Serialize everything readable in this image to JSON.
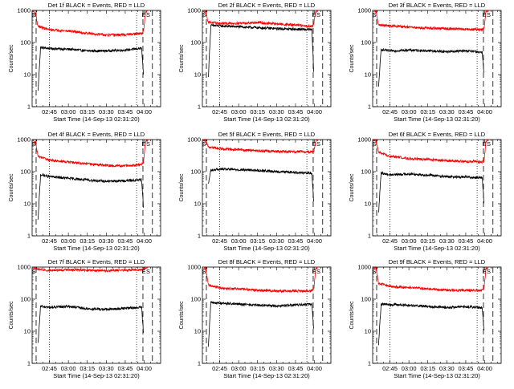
{
  "figure": {
    "colors": {
      "events": "#000000",
      "lld": "#ff0000",
      "axes": "#000000"
    }
  },
  "chart_data": [
    {
      "type": "line",
      "title": "Det 1f BLACK = Events, RED = LLD",
      "xlabel": "Start Time (14-Sep-13 02:31:20)",
      "ylabel": "Counts/sec",
      "ylim": [
        1,
        1000
      ],
      "ylog": true,
      "xlim": [
        "02:31:20",
        "04:13:00"
      ],
      "x_ticks": [
        "02:45",
        "03:00",
        "03:15",
        "03:30",
        "03:45",
        "04:00"
      ],
      "y_ticks": [
        "1",
        "10",
        "100",
        "1000"
      ],
      "markers": [
        {
          "label": "S",
          "time": "02:32:00"
        },
        {
          "label": "E",
          "time": "03:59:00"
        },
        {
          "label": "S",
          "time": "04:02:30"
        }
      ],
      "dashed_lines": [
        "02:34:30",
        "03:59:00",
        "04:06:30"
      ],
      "dotted_lines": [
        "02:45:00",
        "03:54:00"
      ],
      "series": [
        {
          "name": "Events",
          "color": "#000000",
          "x": [
            "02:36:00",
            "02:38:00",
            "02:45:00",
            "03:00:00",
            "03:15:00",
            "03:30:00",
            "03:45:00",
            "03:58:00",
            "03:59:30"
          ],
          "values": [
            3,
            70,
            65,
            62,
            55,
            55,
            58,
            66,
            8
          ]
        },
        {
          "name": "LLD",
          "color": "#ff0000",
          "x": [
            "02:32:00",
            "02:34:00",
            "02:36:00",
            "02:45:00",
            "03:00:00",
            "03:15:00",
            "03:30:00",
            "03:45:00",
            "03:58:00",
            "03:59:30",
            "04:01:00",
            "04:03:00"
          ],
          "values": [
            1000,
            800,
            320,
            250,
            230,
            195,
            170,
            175,
            190,
            230,
            850,
            1000
          ]
        }
      ]
    },
    {
      "type": "line",
      "title": "Det 2f BLACK = Events, RED = LLD",
      "xlabel": "Start Time (14-Sep-13 02:31:20)",
      "ylabel": "Counts/sec",
      "ylim": [
        1,
        1000
      ],
      "ylog": true,
      "xlim": [
        "02:31:20",
        "04:13:00"
      ],
      "x_ticks": [
        "02:45",
        "03:00",
        "03:15",
        "03:30",
        "03:45",
        "04:00"
      ],
      "y_ticks": [
        "1",
        "10",
        "100",
        "1000"
      ],
      "markers": [
        {
          "label": "S",
          "time": "02:32:00"
        },
        {
          "label": "E",
          "time": "03:59:00"
        },
        {
          "label": "S",
          "time": "04:02:30"
        }
      ],
      "dashed_lines": [
        "02:34:30",
        "03:59:00",
        "04:06:30"
      ],
      "dotted_lines": [
        "02:45:00",
        "03:54:00"
      ],
      "series": [
        {
          "name": "Events",
          "color": "#000000",
          "x": [
            "02:36:00",
            "02:38:00",
            "02:45:00",
            "03:00:00",
            "03:15:00",
            "03:30:00",
            "03:45:00",
            "03:58:00",
            "03:59:30"
          ],
          "values": [
            8,
            340,
            330,
            310,
            290,
            270,
            260,
            250,
            10
          ]
        },
        {
          "name": "LLD",
          "color": "#ff0000",
          "x": [
            "02:32:00",
            "02:34:00",
            "02:36:00",
            "02:45:00",
            "03:00:00",
            "03:15:00",
            "03:30:00",
            "03:45:00",
            "03:58:00",
            "03:59:30",
            "04:01:00",
            "04:03:00"
          ],
          "values": [
            1000,
            900,
            430,
            390,
            400,
            420,
            380,
            350,
            320,
            400,
            900,
            1000
          ]
        }
      ]
    },
    {
      "type": "line",
      "title": "Det 3f BLACK = Events, RED = LLD",
      "xlabel": "Start Time (14-Sep-13 02:31:20)",
      "ylabel": "Counts/sec",
      "ylim": [
        1,
        1000
      ],
      "ylog": true,
      "xlim": [
        "02:31:20",
        "04:13:00"
      ],
      "x_ticks": [
        "02:45",
        "03:00",
        "03:15",
        "03:30",
        "03:45",
        "04:00"
      ],
      "y_ticks": [
        "1",
        "10",
        "100",
        "1000"
      ],
      "markers": [
        {
          "label": "S",
          "time": "02:32:00"
        },
        {
          "label": "E",
          "time": "03:59:00"
        },
        {
          "label": "S",
          "time": "04:02:30"
        }
      ],
      "dashed_lines": [
        "02:34:30",
        "03:59:00",
        "04:06:30"
      ],
      "dotted_lines": [
        "02:45:00",
        "03:54:00"
      ],
      "series": [
        {
          "name": "Events",
          "color": "#000000",
          "x": [
            "02:36:00",
            "02:38:00",
            "02:45:00",
            "03:00:00",
            "03:15:00",
            "03:30:00",
            "03:45:00",
            "03:58:00",
            "03:59:30"
          ],
          "values": [
            4,
            60,
            55,
            58,
            55,
            52,
            55,
            50,
            10
          ]
        },
        {
          "name": "LLD",
          "color": "#ff0000",
          "x": [
            "02:32:00",
            "02:34:00",
            "02:36:00",
            "02:45:00",
            "03:00:00",
            "03:15:00",
            "03:30:00",
            "03:45:00",
            "03:58:00",
            "03:59:30",
            "04:01:00",
            "04:03:00"
          ],
          "values": [
            1000,
            900,
            350,
            330,
            300,
            280,
            270,
            260,
            250,
            280,
            900,
            1000
          ]
        }
      ]
    },
    {
      "type": "line",
      "title": "Det 4f BLACK = Events, RED = LLD",
      "xlabel": "Start Time (14-Sep-13 02:31:20)",
      "ylabel": "Counts/sec",
      "ylim": [
        1,
        1000
      ],
      "ylog": true,
      "xlim": [
        "02:31:20",
        "04:13:00"
      ],
      "x_ticks": [
        "02:45",
        "03:00",
        "03:15",
        "03:30",
        "03:45",
        "04:00"
      ],
      "y_ticks": [
        "1",
        "10",
        "100",
        "1000"
      ],
      "markers": [
        {
          "label": "S",
          "time": "02:32:00"
        },
        {
          "label": "E",
          "time": "03:59:00"
        },
        {
          "label": "S",
          "time": "04:02:30"
        }
      ],
      "dashed_lines": [
        "02:34:30",
        "03:59:00",
        "04:06:30"
      ],
      "dotted_lines": [
        "02:45:00",
        "03:54:00"
      ],
      "series": [
        {
          "name": "Events",
          "color": "#000000",
          "x": [
            "02:36:00",
            "02:38:00",
            "02:45:00",
            "03:00:00",
            "03:15:00",
            "03:30:00",
            "03:45:00",
            "03:58:00",
            "03:59:30"
          ],
          "values": [
            3,
            80,
            70,
            62,
            55,
            50,
            52,
            55,
            7
          ]
        },
        {
          "name": "LLD",
          "color": "#ff0000",
          "x": [
            "02:32:00",
            "02:34:00",
            "02:36:00",
            "02:45:00",
            "03:00:00",
            "03:15:00",
            "03:30:00",
            "03:45:00",
            "03:58:00",
            "03:59:30",
            "04:01:00",
            "04:03:00"
          ],
          "values": [
            1000,
            800,
            300,
            230,
            200,
            175,
            155,
            150,
            165,
            200,
            850,
            1000
          ]
        }
      ]
    },
    {
      "type": "line",
      "title": "Det 5f BLACK = Events, RED = LLD",
      "xlabel": "Start Time (14-Sep-13 02:31:20)",
      "ylabel": "Counts/sec",
      "ylim": [
        1,
        1000
      ],
      "ylog": true,
      "xlim": [
        "02:31:20",
        "04:13:00"
      ],
      "x_ticks": [
        "02:45",
        "03:00",
        "03:15",
        "03:30",
        "03:45",
        "04:00"
      ],
      "y_ticks": [
        "1",
        "10",
        "100",
        "1000"
      ],
      "markers": [
        {
          "label": "S",
          "time": "02:32:00"
        },
        {
          "label": "E",
          "time": "03:59:00"
        },
        {
          "label": "S",
          "time": "04:02:30"
        }
      ],
      "dashed_lines": [
        "02:34:30",
        "03:59:00",
        "04:06:30"
      ],
      "dotted_lines": [
        "02:45:00",
        "03:54:00"
      ],
      "series": [
        {
          "name": "Events",
          "color": "#000000",
          "x": [
            "02:36:00",
            "02:38:00",
            "02:45:00",
            "03:00:00",
            "03:15:00",
            "03:30:00",
            "03:45:00",
            "03:58:00",
            "03:59:30"
          ],
          "values": [
            40,
            110,
            120,
            115,
            110,
            100,
            95,
            90,
            10
          ]
        },
        {
          "name": "LLD",
          "color": "#ff0000",
          "x": [
            "02:32:00",
            "02:34:00",
            "02:36:00",
            "02:45:00",
            "03:00:00",
            "03:15:00",
            "03:30:00",
            "03:45:00",
            "03:58:00",
            "03:59:30",
            "04:01:00",
            "04:03:00"
          ],
          "values": [
            1000,
            900,
            580,
            520,
            480,
            450,
            430,
            420,
            420,
            430,
            900,
            1000
          ]
        }
      ]
    },
    {
      "type": "line",
      "title": "Det 6f BLACK = Events, RED = LLD",
      "xlabel": "Start Time (14-Sep-13 02:31:20)",
      "ylabel": "Counts/sec",
      "ylim": [
        1,
        1000
      ],
      "ylog": true,
      "xlim": [
        "02:31:20",
        "04:13:00"
      ],
      "x_ticks": [
        "02:45",
        "03:00",
        "03:15",
        "03:30",
        "03:45",
        "04:00"
      ],
      "y_ticks": [
        "1",
        "10",
        "100",
        "1000"
      ],
      "markers": [
        {
          "label": "S",
          "time": "02:32:00"
        },
        {
          "label": "E",
          "time": "03:59:00"
        },
        {
          "label": "S",
          "time": "04:02:30"
        }
      ],
      "dashed_lines": [
        "02:34:30",
        "03:59:00",
        "04:06:30"
      ],
      "dotted_lines": [
        "02:45:00",
        "03:54:00"
      ],
      "series": [
        {
          "name": "Events",
          "color": "#000000",
          "x": [
            "02:36:00",
            "02:38:00",
            "02:45:00",
            "03:00:00",
            "03:15:00",
            "03:30:00",
            "03:45:00",
            "03:58:00",
            "03:59:30"
          ],
          "values": [
            5,
            90,
            80,
            85,
            78,
            70,
            68,
            65,
            10
          ]
        },
        {
          "name": "LLD",
          "color": "#ff0000",
          "x": [
            "02:32:00",
            "02:34:00",
            "02:36:00",
            "02:45:00",
            "03:00:00",
            "03:15:00",
            "03:30:00",
            "03:45:00",
            "03:58:00",
            "03:59:30",
            "04:01:00",
            "04:03:00"
          ],
          "values": [
            1000,
            900,
            400,
            300,
            260,
            240,
            220,
            210,
            200,
            220,
            900,
            1000
          ]
        }
      ]
    },
    {
      "type": "line",
      "title": "Det 7f BLACK = Events, RED = LLD",
      "xlabel": "Start Time (14-Sep-13 02:31:20)",
      "ylabel": "Counts/sec",
      "ylim": [
        1,
        1000
      ],
      "ylog": true,
      "xlim": [
        "02:31:20",
        "04:13:00"
      ],
      "x_ticks": [
        "02:45",
        "03:00",
        "03:15",
        "03:30",
        "03:45",
        "04:00"
      ],
      "y_ticks": [
        "1",
        "10",
        "100",
        "1000"
      ],
      "markers": [
        {
          "label": "S",
          "time": "02:32:00"
        },
        {
          "label": "E",
          "time": "03:59:00"
        },
        {
          "label": "S",
          "time": "04:02:30"
        }
      ],
      "dashed_lines": [
        "02:34:30",
        "03:59:00",
        "04:06:30"
      ],
      "dotted_lines": [
        "02:45:00",
        "03:54:00"
      ],
      "series": [
        {
          "name": "Events",
          "color": "#000000",
          "x": [
            "02:36:00",
            "02:38:00",
            "02:45:00",
            "03:00:00",
            "03:15:00",
            "03:30:00",
            "03:45:00",
            "03:58:00",
            "03:59:30"
          ],
          "values": [
            4,
            60,
            55,
            60,
            50,
            48,
            52,
            55,
            8
          ]
        },
        {
          "name": "LLD",
          "color": "#ff0000",
          "x": [
            "02:32:00",
            "02:34:00",
            "02:36:00",
            "02:45:00",
            "03:00:00",
            "03:15:00",
            "03:30:00",
            "03:45:00",
            "03:58:00",
            "03:59:30",
            "04:01:00",
            "04:03:00"
          ],
          "values": [
            1000,
            900,
            850,
            800,
            820,
            800,
            780,
            800,
            820,
            850,
            950,
            1000
          ]
        }
      ]
    },
    {
      "type": "line",
      "title": "Det 8f BLACK = Events, RED = LLD",
      "xlabel": "Start Time (14-Sep-13 02:31:20)",
      "ylabel": "Counts/sec",
      "ylim": [
        1,
        1000
      ],
      "ylog": true,
      "xlim": [
        "02:31:20",
        "04:13:00"
      ],
      "x_ticks": [
        "02:45",
        "03:00",
        "03:15",
        "03:30",
        "03:45",
        "04:00"
      ],
      "y_ticks": [
        "1",
        "10",
        "100",
        "1000"
      ],
      "markers": [
        {
          "label": "S",
          "time": "02:32:00"
        },
        {
          "label": "E",
          "time": "03:59:00"
        },
        {
          "label": "S",
          "time": "04:02:30"
        }
      ],
      "dashed_lines": [
        "02:34:30",
        "03:59:00",
        "04:06:30"
      ],
      "dotted_lines": [
        "02:45:00",
        "03:54:00"
      ],
      "series": [
        {
          "name": "Events",
          "color": "#000000",
          "x": [
            "02:36:00",
            "02:38:00",
            "02:45:00",
            "03:00:00",
            "03:15:00",
            "03:30:00",
            "03:45:00",
            "03:58:00",
            "03:59:30"
          ],
          "values": [
            3,
            80,
            75,
            70,
            65,
            62,
            66,
            70,
            10
          ]
        },
        {
          "name": "LLD",
          "color": "#ff0000",
          "x": [
            "02:32:00",
            "02:34:00",
            "02:36:00",
            "02:45:00",
            "03:00:00",
            "03:15:00",
            "03:30:00",
            "03:45:00",
            "03:58:00",
            "03:59:30",
            "04:01:00",
            "04:03:00"
          ],
          "values": [
            1000,
            900,
            280,
            220,
            210,
            190,
            180,
            180,
            185,
            210,
            900,
            1000
          ]
        }
      ]
    },
    {
      "type": "line",
      "title": "Det 9f BLACK = Events, RED = LLD",
      "xlabel": "Start Time (14-Sep-13 02:31:20)",
      "ylabel": "Counts/sec",
      "ylim": [
        1,
        1000
      ],
      "ylog": true,
      "xlim": [
        "02:31:20",
        "04:13:00"
      ],
      "x_ticks": [
        "02:45",
        "03:00",
        "03:15",
        "03:30",
        "03:45",
        "04:00"
      ],
      "y_ticks": [
        "1",
        "10",
        "100",
        "1000"
      ],
      "markers": [
        {
          "label": "S",
          "time": "02:32:00"
        },
        {
          "label": "E",
          "time": "03:59:00"
        },
        {
          "label": "S",
          "time": "04:02:30"
        }
      ],
      "dashed_lines": [
        "02:34:30",
        "03:59:00",
        "04:06:30"
      ],
      "dotted_lines": [
        "02:45:00",
        "03:54:00"
      ],
      "series": [
        {
          "name": "Events",
          "color": "#000000",
          "x": [
            "02:36:00",
            "02:38:00",
            "02:45:00",
            "03:00:00",
            "03:15:00",
            "03:30:00",
            "03:45:00",
            "03:58:00",
            "03:59:30"
          ],
          "values": [
            4,
            70,
            68,
            65,
            60,
            55,
            58,
            55,
            10
          ]
        },
        {
          "name": "LLD",
          "color": "#ff0000",
          "x": [
            "02:32:00",
            "02:34:00",
            "02:36:00",
            "02:45:00",
            "03:00:00",
            "03:15:00",
            "03:30:00",
            "03:45:00",
            "03:58:00",
            "03:59:30",
            "04:01:00",
            "04:03:00"
          ],
          "values": [
            1000,
            900,
            320,
            250,
            230,
            210,
            190,
            190,
            190,
            220,
            900,
            1000
          ]
        }
      ]
    }
  ]
}
